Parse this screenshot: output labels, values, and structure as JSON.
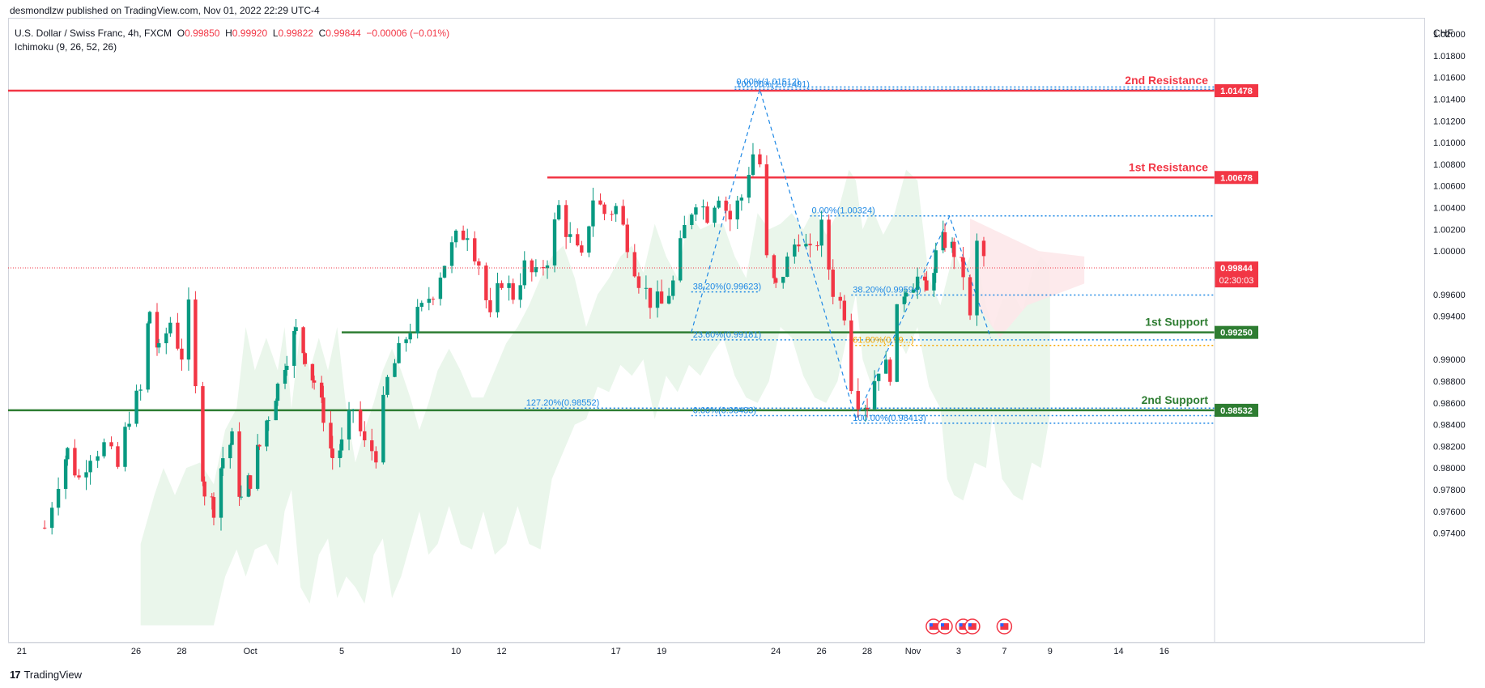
{
  "header": {
    "published": "desmondlzw published on TradingView.com, Nov 01, 2022 22:29 UTC-4"
  },
  "legend": {
    "symbol": "U.S. Dollar / Swiss Franc, 4h, FXCM",
    "o_label": "O",
    "o": "0.99850",
    "h_label": "H",
    "h": "0.99920",
    "l_label": "L",
    "l": "0.99822",
    "c_label": "C",
    "c": "0.99844",
    "change": "−0.00006 (−0.01%)",
    "indicator": "Ichimoku (9, 26, 52, 26)"
  },
  "currency": "CHF",
  "footer": {
    "brand": "TradingView",
    "logo": "17"
  },
  "colors": {
    "up": "#089981",
    "down": "#f23645",
    "resistance": "#f23645",
    "support": "#2e7d32",
    "fib": "#2962ff",
    "fib_orange": "#f7a600",
    "cloud_green": "#e8f5e9",
    "cloud_red": "#fde8ea"
  },
  "chart_data": {
    "type": "candlestick",
    "ylim": [
      0.973,
      1.0215
    ],
    "y_ticks": [
      "1.02000",
      "1.01800",
      "1.01600",
      "1.01400",
      "1.01200",
      "1.01000",
      "1.00800",
      "1.00600",
      "1.00400",
      "1.00200",
      "1.00000",
      "0.99800",
      "0.99600",
      "0.99400",
      "0.99200",
      "0.99000",
      "0.98800",
      "0.98600",
      "0.98400",
      "0.98200",
      "0.98000",
      "0.97800",
      "0.97600",
      "0.97400"
    ],
    "x_ticks": [
      {
        "label": "21",
        "x": 21
      },
      {
        "label": "26",
        "x": 26
      },
      {
        "label": "28",
        "x": 28
      },
      {
        "label": "Oct",
        "x": 31
      },
      {
        "label": "5",
        "x": 35
      },
      {
        "label": "10",
        "x": 40
      },
      {
        "label": "12",
        "x": 42
      },
      {
        "label": "17",
        "x": 47
      },
      {
        "label": "19",
        "x": 49
      },
      {
        "label": "24",
        "x": 54
      },
      {
        "label": "26",
        "x": 56
      },
      {
        "label": "28",
        "x": 58
      },
      {
        "label": "Nov",
        "x": 60
      },
      {
        "label": "3",
        "x": 62
      },
      {
        "label": "7",
        "x": 64
      },
      {
        "label": "9",
        "x": 66
      },
      {
        "label": "14",
        "x": 69
      },
      {
        "label": "16",
        "x": 71
      }
    ],
    "x_range": [
      20.4,
      73.2
    ],
    "price_path": [
      [
        22.0,
        0.9745
      ],
      [
        22.6,
        0.979
      ],
      [
        23.0,
        0.9815
      ],
      [
        23.5,
        0.979
      ],
      [
        24.0,
        0.9815
      ],
      [
        24.6,
        0.982
      ],
      [
        25.2,
        0.98
      ],
      [
        25.7,
        0.985
      ],
      [
        26.2,
        0.987
      ],
      [
        26.6,
        0.9945
      ],
      [
        27.0,
        0.9905
      ],
      [
        27.5,
        0.9935
      ],
      [
        28.0,
        0.9905
      ],
      [
        28.3,
        0.9945
      ],
      [
        28.6,
        0.987
      ],
      [
        29.0,
        0.978
      ],
      [
        29.4,
        0.9765
      ],
      [
        29.8,
        0.981
      ],
      [
        30.2,
        0.9825
      ],
      [
        30.6,
        0.977
      ],
      [
        31.0,
        0.979
      ],
      [
        31.4,
        0.982
      ],
      [
        31.8,
        0.985
      ],
      [
        32.2,
        0.9875
      ],
      [
        32.6,
        0.9905
      ],
      [
        33.0,
        0.9925
      ],
      [
        33.4,
        0.9905
      ],
      [
        33.8,
        0.988
      ],
      [
        34.2,
        0.985
      ],
      [
        34.6,
        0.981
      ],
      [
        35.0,
        0.982
      ],
      [
        35.5,
        0.9855
      ],
      [
        36.0,
        0.982
      ],
      [
        36.5,
        0.9815
      ],
      [
        37.0,
        0.988
      ],
      [
        37.5,
        0.9905
      ],
      [
        38.0,
        0.993
      ],
      [
        38.5,
        0.9945
      ],
      [
        39.0,
        0.9965
      ],
      [
        39.5,
        0.999
      ],
      [
        40.0,
        1.001
      ],
      [
        40.5,
        1.002
      ],
      [
        41.0,
        0.999
      ],
      [
        41.5,
        0.9935
      ],
      [
        42.0,
        0.9975
      ],
      [
        42.5,
        0.996
      ],
      [
        43.0,
        0.9985
      ],
      [
        43.5,
        0.9975
      ],
      [
        44.0,
        0.9995
      ],
      [
        44.5,
        1.004
      ],
      [
        45.0,
        1.001
      ],
      [
        45.5,
        0.999
      ],
      [
        46.0,
        1.005
      ],
      [
        46.5,
        1.0035
      ],
      [
        47.0,
        1.004
      ],
      [
        47.5,
        1.001
      ],
      [
        48.0,
        0.9975
      ],
      [
        48.5,
        0.9955
      ],
      [
        49.0,
        0.995
      ],
      [
        49.5,
        0.997
      ],
      [
        50.0,
        1.002
      ],
      [
        50.5,
        1.005
      ],
      [
        51.0,
        1.0035
      ],
      [
        51.5,
        1.0055
      ],
      [
        52.0,
        1.003
      ],
      [
        52.5,
        1.005
      ],
      [
        53.0,
        1.009
      ],
      [
        53.3,
        1.008
      ],
      [
        53.6,
        0.999
      ],
      [
        54.0,
        0.9965
      ],
      [
        54.5,
        0.999
      ],
      [
        55.0,
        1.0015
      ],
      [
        55.5,
        0.9995
      ],
      [
        56.0,
        1.002
      ],
      [
        56.5,
        0.9965
      ],
      [
        57.0,
        0.9945
      ],
      [
        57.3,
        0.988
      ],
      [
        57.6,
        0.9865
      ],
      [
        58.0,
        0.986
      ],
      [
        58.5,
        0.9895
      ],
      [
        59.0,
        0.989
      ],
      [
        59.3,
        0.994
      ],
      [
        59.7,
        0.997
      ],
      [
        60.2,
        0.9975
      ],
      [
        60.6,
        0.996
      ],
      [
        61.0,
        0.9995
      ],
      [
        61.4,
        1.001
      ],
      [
        61.8,
        1.0
      ],
      [
        62.2,
        0.998
      ],
      [
        62.5,
        0.9935
      ],
      [
        62.8,
        1.0005
      ],
      [
        63.1,
        0.9994
      ],
      [
        63.4,
        0.9984
      ]
    ],
    "levels": [
      {
        "name": "2nd Resistance",
        "value": 1.01478,
        "label": "1.01478",
        "role": "resistance",
        "x_start": 20.4
      },
      {
        "name": "1st Resistance",
        "value": 1.00678,
        "label": "1.00678",
        "role": "resistance",
        "x_start": 44.0
      },
      {
        "name": "1st Support",
        "value": 0.9925,
        "label": "0.99250",
        "role": "support",
        "x_start": 35.0
      },
      {
        "name": "2nd Support",
        "value": 0.98532,
        "label": "0.98532",
        "role": "support",
        "x_start": 20.4
      }
    ],
    "current_price": {
      "value": 0.99844,
      "label": "0.99844",
      "countdown": "02:30:03"
    },
    "fib_lines": [
      {
        "label": "0.00%(1.01512)",
        "value": 1.01512,
        "x1": 52.2,
        "x2": 73.2
      },
      {
        "label": "100.00%(1.01491)",
        "value": 1.01491,
        "x1": 52.2,
        "x2": 73.2
      },
      {
        "label": "0.00%(1.00324)",
        "value": 1.00324,
        "x1": 55.5,
        "x2": 73.2
      },
      {
        "label": "38.20%(0.99623)",
        "value": 0.99623,
        "x1": 50.3,
        "x2": 53.3
      },
      {
        "label": "38.20%(0.99594)",
        "value": 0.99594,
        "x1": 57.3,
        "x2": 73.2
      },
      {
        "label": "23.60%(0.99181)",
        "value": 0.99181,
        "x1": 50.3,
        "x2": 73.2
      },
      {
        "label": "61.80%(0.99...)",
        "value": 0.9913,
        "x1": 57.3,
        "x2": 73.2,
        "color": "orange"
      },
      {
        "label": "127.20%(0.98552)",
        "value": 0.98552,
        "x1": 43.0,
        "x2": 73.2
      },
      {
        "label": "0.00%(0.98483)",
        "value": 0.98483,
        "x1": 50.3,
        "x2": 73.2
      },
      {
        "label": "100.00%(0.98413)",
        "value": 0.98413,
        "x1": 57.3,
        "x2": 73.2
      }
    ],
    "swing_pattern": [
      [
        50.3,
        0.9925
      ],
      [
        53.3,
        1.0149
      ],
      [
        57.5,
        0.9845
      ],
      [
        61.6,
        1.0032
      ],
      [
        63.4,
        0.992
      ]
    ],
    "events": [
      "us-flag",
      "us-flag",
      "us-flag",
      "us-flag",
      "us-flag"
    ]
  }
}
